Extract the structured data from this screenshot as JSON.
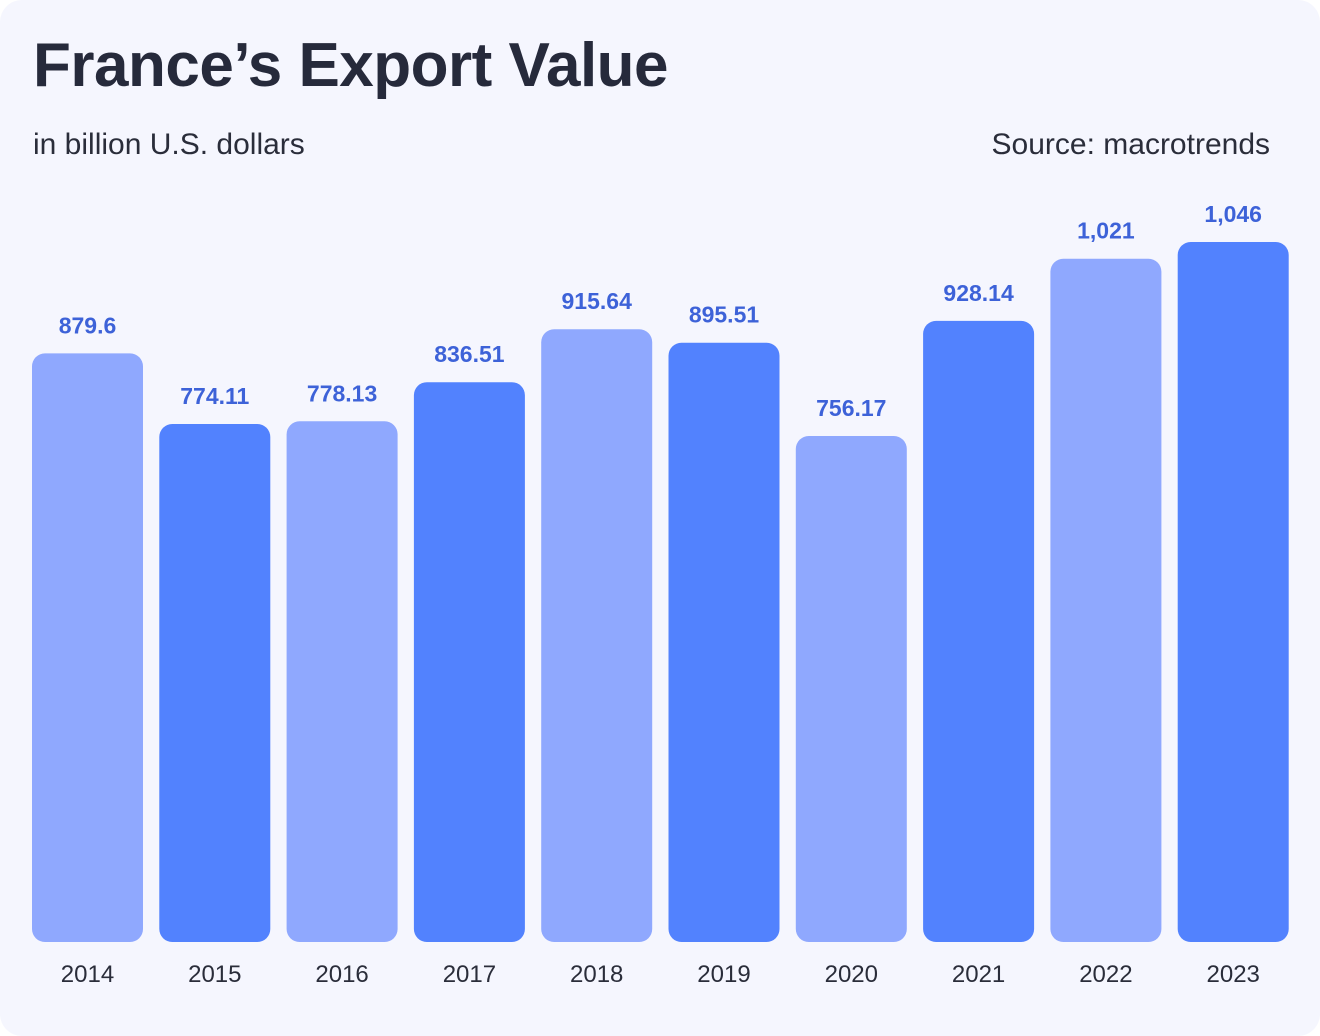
{
  "header": {
    "title": "France’s Export Value",
    "subtitle": "in billion U.S. dollars",
    "source": "Source: macrotrends"
  },
  "colors": {
    "light_bar": "#8fa8fe",
    "dark_bar": "#5282fe",
    "value_label": "#3d62d8",
    "axis_label": "#2a2d3a",
    "background": "#f5f6fe"
  },
  "chart_data": {
    "type": "bar",
    "title": "France’s Export Value",
    "subtitle": "in billion U.S. dollars",
    "xlabel": "",
    "ylabel": "",
    "categories": [
      "2014",
      "2015",
      "2016",
      "2017",
      "2018",
      "2019",
      "2020",
      "2021",
      "2022",
      "2023"
    ],
    "values": [
      879.6,
      774.11,
      778.13,
      836.51,
      915.64,
      895.51,
      756.17,
      928.14,
      1021,
      1046
    ],
    "value_labels": [
      "879.6",
      "774.11",
      "778.13",
      "836.51",
      "915.64",
      "895.51",
      "756.17",
      "928.14",
      "1,021",
      "1,046"
    ],
    "bar_colors": [
      "light",
      "dark",
      "light",
      "dark",
      "light",
      "dark",
      "light",
      "dark",
      "light",
      "dark"
    ],
    "ylim": [
      0,
      1046
    ],
    "grid": false,
    "legend": "none"
  }
}
